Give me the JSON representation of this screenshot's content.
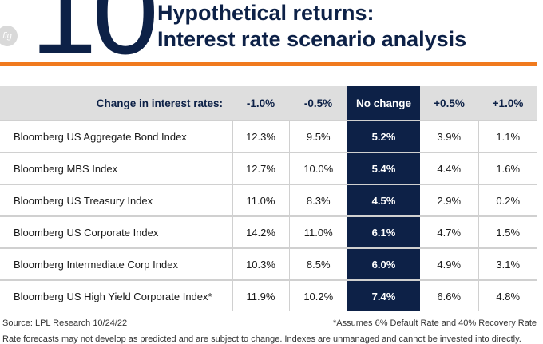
{
  "header": {
    "big_number": "10",
    "badge": "fig",
    "title_line1": "Hypothetical returns:",
    "title_line2": "Interest rate scenario analysis"
  },
  "colors": {
    "navy": "#0d2147",
    "orange": "#f07a1e",
    "header_gray": "#dedede"
  },
  "table": {
    "columns": [
      "Change in interest rates:",
      "-1.0%",
      "-0.5%",
      "No change",
      "+0.5%",
      "+1.0%"
    ],
    "rows": [
      [
        "Bloomberg US Aggregate Bond Index",
        "12.3%",
        "9.5%",
        "5.2%",
        "3.9%",
        "1.1%"
      ],
      [
        "Bloomberg MBS Index",
        "12.7%",
        "10.0%",
        "5.4%",
        "4.4%",
        "1.6%"
      ],
      [
        "Bloomberg US Treasury Index",
        "11.0%",
        "8.3%",
        "4.5%",
        "2.9%",
        "0.2%"
      ],
      [
        "Bloomberg US Corporate Index",
        "14.2%",
        "11.0%",
        "6.1%",
        "4.7%",
        "1.5%"
      ],
      [
        "Bloomberg Intermediate Corp Index",
        "10.3%",
        "8.5%",
        "6.0%",
        "4.9%",
        "3.1%"
      ],
      [
        "Bloomberg US High Yield Corporate Index*",
        "11.9%",
        "10.2%",
        "7.4%",
        "6.6%",
        "4.8%"
      ]
    ]
  },
  "footer": {
    "source": "Source: LPL Research 10/24/22",
    "note": "*Assumes 6% Default Rate and 40% Recovery Rate",
    "disclaimer": "Rate forecasts may not develop as predicted and are subject to change. Indexes are unmanaged and cannot be invested into directly."
  }
}
